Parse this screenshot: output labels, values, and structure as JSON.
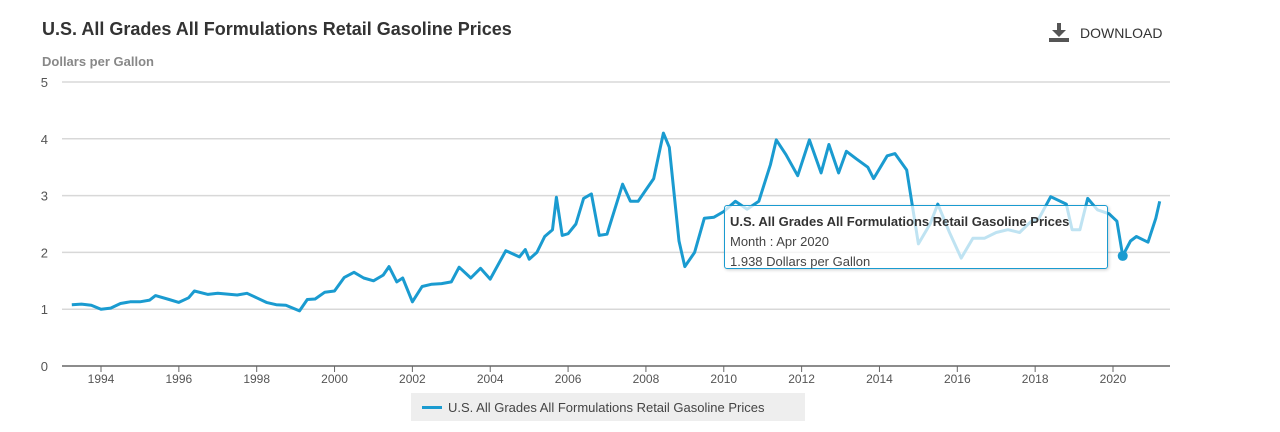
{
  "chart_data": {
    "type": "line",
    "title": "U.S. All Grades All Formulations Retail Gasoline Prices",
    "ylabel": "Dollars per Gallon",
    "xlabel": "",
    "ylim": [
      0,
      5
    ],
    "xlim": [
      1993,
      2021.5
    ],
    "yticks": [
      "0",
      "1",
      "2",
      "3",
      "4",
      "5"
    ],
    "xticks": [
      "1994",
      "1996",
      "1998",
      "2000",
      "2002",
      "2004",
      "2006",
      "2008",
      "2010",
      "2012",
      "2014",
      "2016",
      "2018",
      "2020"
    ],
    "grid": true,
    "legend": "bottom",
    "color": "#1a9bd0",
    "series": [
      {
        "name": "U.S. All Grades All Formulations Retail Gasoline Prices",
        "x": [
          1993.25,
          1993.5,
          1993.75,
          1994.0,
          1994.25,
          1994.5,
          1994.75,
          1995.0,
          1995.25,
          1995.4,
          1995.75,
          1996.0,
          1996.25,
          1996.4,
          1996.75,
          1997.0,
          1997.5,
          1997.75,
          1998.0,
          1998.25,
          1998.5,
          1998.75,
          1999.0,
          1999.1,
          1999.3,
          1999.5,
          1999.75,
          2000.0,
          2000.25,
          2000.5,
          2000.75,
          2001.0,
          2001.25,
          2001.4,
          2001.6,
          2001.75,
          2002.0,
          2002.25,
          2002.5,
          2002.75,
          2003.0,
          2003.2,
          2003.5,
          2003.75,
          2004.0,
          2004.4,
          2004.75,
          2004.9,
          2005.0,
          2005.2,
          2005.4,
          2005.6,
          2005.7,
          2005.85,
          2006.0,
          2006.2,
          2006.4,
          2006.6,
          2006.8,
          2007.0,
          2007.4,
          2007.6,
          2007.8,
          2008.0,
          2008.2,
          2008.45,
          2008.6,
          2008.85,
          2009.0,
          2009.25,
          2009.5,
          2009.75,
          2010.0,
          2010.3,
          2010.6,
          2010.9,
          2011.2,
          2011.35,
          2011.6,
          2011.9,
          2012.2,
          2012.5,
          2012.7,
          2012.95,
          2013.15,
          2013.4,
          2013.7,
          2013.85,
          2014.2,
          2014.4,
          2014.7,
          2015.0,
          2015.3,
          2015.5,
          2015.8,
          2016.1,
          2016.4,
          2016.7,
          2017.0,
          2017.3,
          2017.6,
          2017.9,
          2018.1,
          2018.4,
          2018.8,
          2018.95,
          2019.15,
          2019.35,
          2019.6,
          2019.9,
          2020.1,
          2020.25,
          2020.45,
          2020.6,
          2020.9,
          2021.1,
          2021.2
        ],
        "y": [
          1.08,
          1.09,
          1.07,
          1.0,
          1.02,
          1.1,
          1.13,
          1.13,
          1.16,
          1.24,
          1.17,
          1.12,
          1.2,
          1.32,
          1.26,
          1.28,
          1.25,
          1.28,
          1.2,
          1.12,
          1.08,
          1.07,
          1.0,
          0.97,
          1.17,
          1.18,
          1.3,
          1.32,
          1.56,
          1.65,
          1.55,
          1.5,
          1.6,
          1.75,
          1.48,
          1.55,
          1.13,
          1.4,
          1.44,
          1.45,
          1.48,
          1.74,
          1.55,
          1.72,
          1.53,
          2.03,
          1.92,
          2.05,
          1.88,
          2.0,
          2.28,
          2.4,
          2.97,
          2.3,
          2.33,
          2.5,
          2.95,
          3.03,
          2.3,
          2.32,
          3.2,
          2.9,
          2.9,
          3.1,
          3.3,
          4.1,
          3.85,
          2.2,
          1.75,
          2.0,
          2.6,
          2.62,
          2.72,
          2.9,
          2.76,
          2.9,
          3.55,
          3.98,
          3.72,
          3.35,
          3.98,
          3.4,
          3.9,
          3.4,
          3.78,
          3.65,
          3.5,
          3.3,
          3.7,
          3.74,
          3.45,
          2.15,
          2.5,
          2.85,
          2.35,
          1.9,
          2.25,
          2.25,
          2.35,
          2.4,
          2.35,
          2.55,
          2.6,
          2.98,
          2.85,
          2.4,
          2.4,
          2.95,
          2.75,
          2.68,
          2.55,
          1.94,
          2.2,
          2.28,
          2.18,
          2.6,
          2.9
        ]
      }
    ],
    "highlight": {
      "x": 2020.25,
      "y": 1.938
    }
  },
  "tooltip": {
    "title": "U.S. All Grades All Formulations Retail Gasoline Prices",
    "month": "Month : Apr 2020",
    "value": "1.938 Dollars per Gallon"
  },
  "download_label": "DOWNLOAD",
  "legend_label": "U.S. All Grades All Formulations Retail Gasoline Prices"
}
